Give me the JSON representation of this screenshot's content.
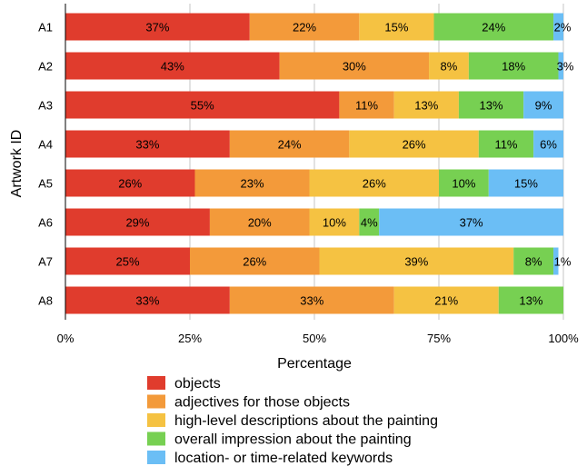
{
  "chart_data": {
    "type": "bar",
    "orientation": "horizontal",
    "stacked": true,
    "title": "",
    "xlabel": "Percentage",
    "ylabel": "Artwork ID",
    "xlim": [
      0,
      100
    ],
    "xticks": [
      "0%",
      "25%",
      "50%",
      "75%",
      "100%"
    ],
    "grid": true,
    "legend_position": "bottom",
    "categories": [
      "A1",
      "A2",
      "A3",
      "A4",
      "A5",
      "A6",
      "A7",
      "A8"
    ],
    "series": [
      {
        "name": "objects",
        "color": "#E03C2D",
        "values": [
          37,
          43,
          55,
          33,
          26,
          29,
          25,
          33
        ],
        "labels": [
          "37%",
          "43%",
          "55%",
          "33%",
          "26%",
          "29%",
          "25%",
          "33%"
        ]
      },
      {
        "name": "adjectives for those objects",
        "color": "#F39A3A",
        "values": [
          22,
          30,
          11,
          24,
          23,
          20,
          26,
          33
        ],
        "labels": [
          "22%",
          "30%",
          "11%",
          "24%",
          "23%",
          "20%",
          "26%",
          "33%"
        ]
      },
      {
        "name": "high-level descriptions about the painting",
        "color": "#F5C242",
        "values": [
          15,
          8,
          13,
          26,
          26,
          10,
          39,
          21
        ],
        "labels": [
          "15%",
          "8%",
          "13%",
          "26%",
          "26%",
          "10%",
          "39%",
          "21%"
        ]
      },
      {
        "name": "overall impression about the painting",
        "color": "#77D052",
        "values": [
          24,
          18,
          13,
          11,
          10,
          4,
          8,
          13
        ],
        "labels": [
          "24%",
          "18%",
          "13%",
          "11%",
          "10%",
          "4%",
          "8%",
          "13%"
        ]
      },
      {
        "name": "location- or time-related keywords",
        "color": "#6BBEF5",
        "values": [
          2,
          3,
          9,
          6,
          15,
          37,
          1,
          0
        ],
        "labels": [
          "2%",
          "3%",
          "9%",
          "6%",
          "15%",
          "37%",
          "1%",
          ""
        ]
      }
    ]
  }
}
